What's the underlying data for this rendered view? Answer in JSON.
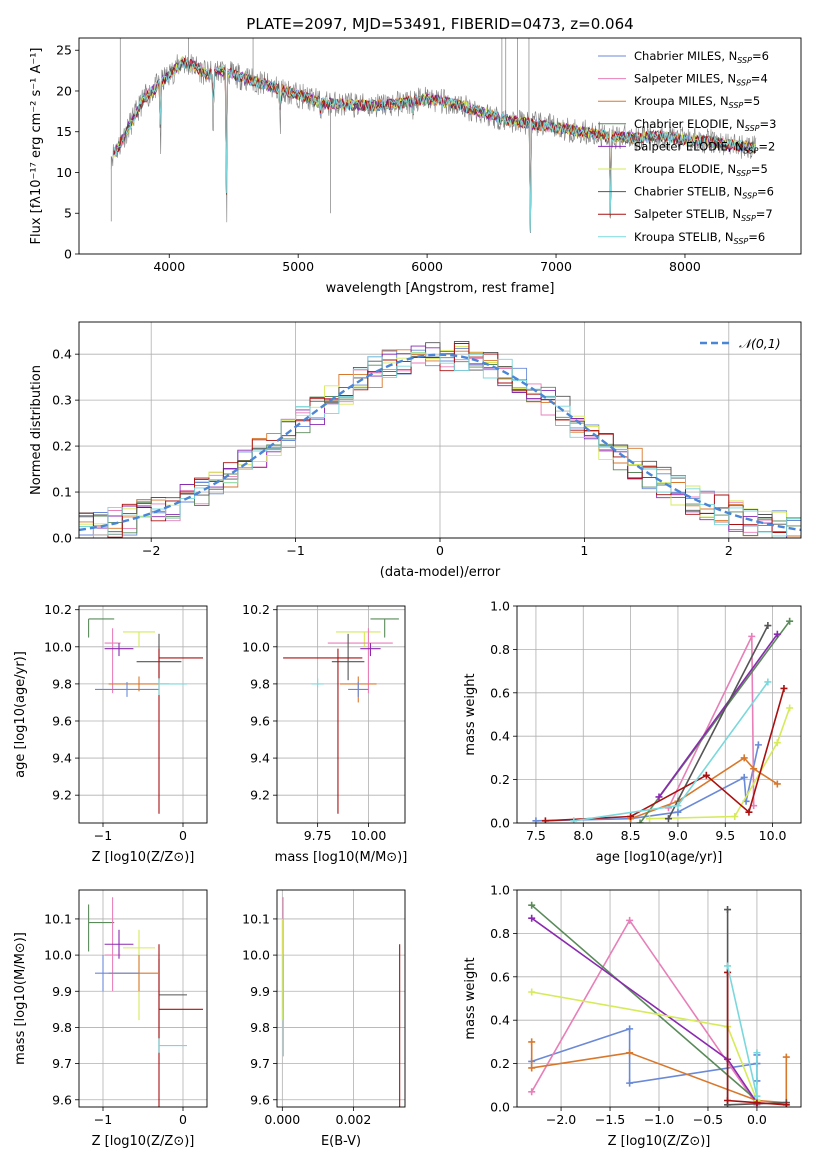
{
  "page_title": "PLATE=2097, MJD=53491, FIBERID=0473, z=0.064",
  "colors": {
    "c1": "#6a8ad8",
    "c2": "#e87fb8",
    "c3": "#d8782c",
    "c4": "#5a8a5a",
    "c5": "#8a2ab0",
    "c6": "#d6ea5a",
    "c7": "#555555",
    "c8": "#aa1010",
    "c9": "#7ad8dc",
    "obs": "#808080",
    "fit": "#4a86d8"
  },
  "chart_data": [
    {
      "id": "spectrum",
      "type": "line",
      "title": "PLATE=2097, MJD=53491, FIBERID=0473, z=0.064",
      "xlabel": "wavelength [Angstrom, rest frame]",
      "ylabel": "Flux [fλ10⁻¹⁷ erg cm⁻² s⁻¹ A⁻¹]",
      "xlim": [
        3300,
        8900
      ],
      "ylim": [
        0,
        26.5
      ],
      "xticks": [
        "4000",
        "5000",
        "6000",
        "7000",
        "8000"
      ],
      "yticks": [
        "0",
        "5",
        "10",
        "15",
        "20",
        "25"
      ],
      "grid": false,
      "legend_position": "top-right",
      "legend": [
        {
          "name": "Chabrier MILES, N_SSP=6",
          "text": "Chabrier MILES, N",
          "n": "6",
          "color_key": "c1"
        },
        {
          "name": "Salpeter MILES, N_SSP=4",
          "text": "Salpeter MILES, N",
          "n": "4",
          "color_key": "c2"
        },
        {
          "name": "Kroupa MILES, N_SSP=5",
          "text": "Kroupa MILES, N",
          "n": "5",
          "color_key": "c3"
        },
        {
          "name": "Chabrier ELODIE, N_SSP=3",
          "text": "Chabrier ELODIE, N",
          "n": "3",
          "color_key": "c4"
        },
        {
          "name": "Salpeter ELODIE, N_SSP=2",
          "text": "Salpeter ELODIE, N",
          "n": "2",
          "color_key": "c5"
        },
        {
          "name": "Kroupa ELODIE, N_SSP=5",
          "text": "Kroupa ELODIE, N",
          "n": "5",
          "color_key": "c6"
        },
        {
          "name": "Chabrier STELIB, N_SSP=6",
          "text": "Chabrier STELIB, N",
          "n": "6",
          "color_key": "c7"
        },
        {
          "name": "Salpeter STELIB, N_SSP=7",
          "text": "Salpeter STELIB, N",
          "n": "7",
          "color_key": "c8"
        },
        {
          "name": "Kroupa STELIB, N_SSP=6",
          "text": "Kroupa STELIB, N",
          "n": "6",
          "color_key": "c9"
        }
      ],
      "legend_sub": "SSP",
      "continuum": [
        [
          3550,
          12
        ],
        [
          3600,
          13
        ],
        [
          3700,
          16
        ],
        [
          3800,
          19
        ],
        [
          3900,
          20.5
        ],
        [
          4000,
          22
        ],
        [
          4100,
          23.5
        ],
        [
          4200,
          23
        ],
        [
          4300,
          22
        ],
        [
          4400,
          22.5
        ],
        [
          4500,
          22
        ],
        [
          4600,
          21.5
        ],
        [
          4800,
          20.5
        ],
        [
          5000,
          19.5
        ],
        [
          5200,
          18.5
        ],
        [
          5400,
          18.3
        ],
        [
          5600,
          18.2
        ],
        [
          5800,
          18.5
        ],
        [
          6000,
          19
        ],
        [
          6200,
          18.5
        ],
        [
          6400,
          17.5
        ],
        [
          6600,
          16.5
        ],
        [
          6800,
          16
        ],
        [
          7000,
          15.5
        ],
        [
          7200,
          15
        ],
        [
          7400,
          14.5
        ],
        [
          7600,
          14.2
        ],
        [
          7800,
          14.5
        ],
        [
          8000,
          14
        ],
        [
          8200,
          13.8
        ],
        [
          8400,
          13.3
        ],
        [
          8550,
          13
        ]
      ],
      "absorption": [
        [
          3933,
          10.5
        ],
        [
          4340,
          11
        ],
        [
          4445,
          0
        ],
        [
          4861,
          13.5
        ],
        [
          5175,
          16
        ],
        [
          5890,
          16.5
        ],
        [
          6563,
          15.5
        ],
        [
          6800,
          0
        ],
        [
          7420,
          0
        ]
      ],
      "obs_spikes": [
        [
          3550,
          4
        ],
        [
          3620,
          27
        ],
        [
          4150,
          27
        ],
        [
          4650,
          26.5
        ],
        [
          5250,
          5
        ],
        [
          6580,
          27
        ],
        [
          6610,
          27
        ],
        [
          6700,
          27
        ],
        [
          6790,
          27
        ]
      ]
    },
    {
      "id": "residuals",
      "type": "line",
      "xlabel": "(data-model)/error",
      "ylabel": "Normed distribution",
      "xlim": [
        -2.5,
        2.5
      ],
      "ylim": [
        0,
        0.47
      ],
      "xticks": [
        "−2",
        "−1",
        "0",
        "1",
        "2"
      ],
      "yticks": [
        "0.0",
        "0.1",
        "0.2",
        "0.3",
        "0.4"
      ],
      "grid": true,
      "legend_position": "top-right",
      "legend": [
        {
          "name": "𝒩(0,1)",
          "style": "dashed"
        }
      ],
      "bin_width": 0.1,
      "gaussian": {
        "mu": 0,
        "sigma": 1
      }
    },
    {
      "id": "age_vs_Z",
      "type": "scatter",
      "xlabel": "Z [log10(Z/Z⊙)]",
      "ylabel": "age [log10(age/yr)]",
      "xlim": [
        -1.3,
        0.3
      ],
      "ylim": [
        9.05,
        10.22
      ],
      "xticks": [
        "−1",
        "0"
      ],
      "yticks": [
        "9.2",
        "9.4",
        "9.6",
        "9.8",
        "10.0",
        "10.2"
      ],
      "grid": true,
      "points": [
        {
          "color_key": "c4",
          "x": -1.18,
          "xerr": [
            0,
            0.32
          ],
          "y": 10.15,
          "yerr": [
            0.1,
            0
          ]
        },
        {
          "color_key": "c6",
          "x": -0.55,
          "xerr": [
            0.2,
            0.2
          ],
          "y": 10.08,
          "yerr": [
            0.08,
            0
          ]
        },
        {
          "color_key": "c2",
          "x": -0.88,
          "xerr": [
            0.1,
            0.1
          ],
          "y": 10.02,
          "yerr": [
            0.27,
            0.08
          ]
        },
        {
          "color_key": "c5",
          "x": -0.8,
          "xerr": [
            0.18,
            0.18
          ],
          "y": 9.99,
          "yerr": [
            0.04,
            0.03
          ]
        },
        {
          "color_key": "c7",
          "x": -0.3,
          "xerr": [
            0.28,
            0.28
          ],
          "y": 9.92,
          "yerr": [
            0.1,
            0.15
          ]
        },
        {
          "color_key": "c8",
          "x": -0.3,
          "xerr": [
            0,
            0.55
          ],
          "y": 9.94,
          "yerr": [
            0.84,
            0.05
          ]
        },
        {
          "color_key": "c3",
          "x": -0.55,
          "xerr": [
            0.38,
            0.38
          ],
          "y": 9.8,
          "yerr": [
            0.04,
            0.04
          ]
        },
        {
          "color_key": "c1",
          "x": -0.7,
          "xerr": [
            0.4,
            0.4
          ],
          "y": 9.77,
          "yerr": [
            0.04,
            0.04
          ]
        },
        {
          "color_key": "c9",
          "x": -0.3,
          "xerr": [
            0,
            0.35
          ],
          "y": 9.8,
          "yerr": [
            0.06,
            0.03
          ]
        }
      ]
    },
    {
      "id": "age_vs_mass",
      "type": "scatter",
      "xlabel": "mass [log10(M/M⊙)]",
      "ylabel": "",
      "xlim": [
        9.55,
        10.18
      ],
      "ylim": [
        9.05,
        10.22
      ],
      "xticks": [
        "9.75",
        "10.00"
      ],
      "yticks": [
        "9.2",
        "9.4",
        "9.6",
        "9.8",
        "10.0",
        "10.2"
      ],
      "grid": true,
      "points": [
        {
          "color_key": "c4",
          "x": 10.08,
          "xerr": [
            0.07,
            0.07
          ],
          "y": 10.15,
          "yerr": [
            0.1,
            0
          ]
        },
        {
          "color_key": "c6",
          "x": 9.98,
          "xerr": [
            0.14,
            0.08
          ],
          "y": 10.08,
          "yerr": [
            0.08,
            0
          ]
        },
        {
          "color_key": "c2",
          "x": 10.0,
          "xerr": [
            0.2,
            0.12
          ],
          "y": 10.02,
          "yerr": [
            0.27,
            0.08
          ]
        },
        {
          "color_key": "c5",
          "x": 10.01,
          "xerr": [
            0.05,
            0.05
          ],
          "y": 9.99,
          "yerr": [
            0.04,
            0.03
          ]
        },
        {
          "color_key": "c7",
          "x": 9.9,
          "xerr": [
            0.08,
            0.08
          ],
          "y": 9.92,
          "yerr": [
            0.1,
            0.15
          ]
        },
        {
          "color_key": "c8",
          "x": 9.85,
          "xerr": [
            0.27,
            0.12
          ],
          "y": 9.94,
          "yerr": [
            0.84,
            0.05
          ]
        },
        {
          "color_key": "c3",
          "x": 9.95,
          "xerr": [
            0.09,
            0.09
          ],
          "y": 9.8,
          "yerr": [
            0.1,
            0.04
          ]
        },
        {
          "color_key": "c1",
          "x": 9.95,
          "xerr": [
            0.05,
            0.05
          ],
          "y": 9.77,
          "yerr": [
            0.04,
            0.04
          ]
        },
        {
          "color_key": "c9",
          "x": 9.75,
          "xerr": [
            0.03,
            0.03
          ],
          "y": 9.8,
          "yerr": [
            0.02,
            0.03
          ]
        }
      ]
    },
    {
      "id": "weight_vs_age",
      "type": "line",
      "xlabel": "age [log10(age/yr)]",
      "ylabel": "mass weight",
      "xlim": [
        7.3,
        10.3
      ],
      "ylim": [
        0,
        1
      ],
      "xticks": [
        "7.5",
        "8.0",
        "8.5",
        "9.0",
        "9.5",
        "10.0"
      ],
      "yticks": [
        "0.0",
        "0.2",
        "0.4",
        "0.6",
        "0.8",
        "1.0"
      ],
      "grid": true,
      "series": [
        {
          "color_key": "c1",
          "x": [
            7.5,
            8.5,
            9.0,
            9.7,
            9.72,
            9.85
          ],
          "y": [
            0.01,
            0.02,
            0.05,
            0.21,
            0.1,
            0.36
          ]
        },
        {
          "color_key": "c2",
          "x": [
            8.9,
            9.78,
            9.8
          ],
          "y": [
            0.07,
            0.86,
            0.08
          ]
        },
        {
          "color_key": "c3",
          "x": [
            8.5,
            9.0,
            9.7,
            9.8,
            10.05
          ],
          "y": [
            0.02,
            0.1,
            0.3,
            0.25,
            0.18
          ]
        },
        {
          "color_key": "c4",
          "x": [
            8.6,
            10.18
          ],
          "y": [
            0.0,
            0.93
          ]
        },
        {
          "color_key": "c5",
          "x": [
            8.8,
            10.05
          ],
          "y": [
            0.12,
            0.87
          ]
        },
        {
          "color_key": "c6",
          "x": [
            8.7,
            9.6,
            10.05,
            10.18
          ],
          "y": [
            0.02,
            0.03,
            0.37,
            0.53
          ]
        },
        {
          "color_key": "c7",
          "x": [
            8.9,
            9.95
          ],
          "y": [
            0.02,
            0.91
          ]
        },
        {
          "color_key": "c8",
          "x": [
            7.6,
            8.5,
            9.3,
            9.75,
            10.12
          ],
          "y": [
            0.01,
            0.03,
            0.22,
            0.05,
            0.62
          ]
        },
        {
          "color_key": "c9",
          "x": [
            7.9,
            9.0,
            9.95
          ],
          "y": [
            0.01,
            0.08,
            0.65
          ]
        }
      ]
    },
    {
      "id": "mass_vs_Z",
      "type": "scatter",
      "xlabel": "Z [log10(Z/Z⊙)]",
      "ylabel": "mass [log10(M/M⊙)]",
      "xlim": [
        -1.3,
        0.3
      ],
      "ylim": [
        9.58,
        10.18
      ],
      "xticks": [
        "−1",
        "0"
      ],
      "yticks": [
        "9.6",
        "9.7",
        "9.8",
        "9.9",
        "10.0",
        "10.1"
      ],
      "grid": true,
      "points": [
        {
          "color_key": "c4",
          "x": -1.18,
          "xerr": [
            0,
            0.32
          ],
          "y": 10.09,
          "yerr": [
            0.08,
            0.05
          ]
        },
        {
          "color_key": "c6",
          "x": -0.55,
          "xerr": [
            0.2,
            0.2
          ],
          "y": 10.02,
          "yerr": [
            0.2,
            0.05
          ]
        },
        {
          "color_key": "c2",
          "x": -0.88,
          "xerr": [
            0.1,
            0.1
          ],
          "y": 10.0,
          "yerr": [
            0.1,
            0.16
          ]
        },
        {
          "color_key": "c5",
          "x": -0.8,
          "xerr": [
            0.18,
            0.18
          ],
          "y": 10.03,
          "yerr": [
            0.04,
            0.04
          ]
        },
        {
          "color_key": "c7",
          "x": -0.3,
          "xerr": [
            0,
            0.35
          ],
          "y": 9.89,
          "yerr": [
            0.16,
            0.1
          ]
        },
        {
          "color_key": "c8",
          "x": -0.3,
          "xerr": [
            0,
            0.55
          ],
          "y": 9.85,
          "yerr": [
            0.27,
            0.18
          ]
        },
        {
          "color_key": "c3",
          "x": -0.55,
          "xerr": [
            0.38,
            0.25
          ],
          "y": 9.95,
          "yerr": [
            0.05,
            0.05
          ]
        },
        {
          "color_key": "c1",
          "x": -1.0,
          "xerr": [
            0.1,
            0.45
          ],
          "y": 9.95,
          "yerr": [
            0.05,
            0.05
          ]
        },
        {
          "color_key": "c9",
          "x": -0.3,
          "xerr": [
            0,
            0.35
          ],
          "y": 9.75,
          "yerr": [
            0.02,
            0.02
          ]
        }
      ]
    },
    {
      "id": "mass_vs_ebv",
      "type": "scatter",
      "xlabel": "E(B-V)",
      "ylabel": "",
      "xlim": [
        -0.00015,
        0.00345
      ],
      "ylim": [
        9.58,
        10.18
      ],
      "xticks": [
        "0.000",
        "0.002"
      ],
      "yticks": [
        "9.6",
        "9.7",
        "9.8",
        "9.9",
        "10.0",
        "10.1"
      ],
      "grid": true,
      "points": [
        {
          "color_key": "c2",
          "x": 2e-05,
          "xerr": [
            0,
            0
          ],
          "y": 10.0,
          "yerr": [
            0.15,
            0.16
          ]
        },
        {
          "color_key": "c6",
          "x": 0.0,
          "xerr": [
            0,
            0
          ],
          "y": 10.02,
          "yerr": [
            0.2,
            0.08
          ]
        },
        {
          "color_key": "c9",
          "x": 3e-05,
          "xerr": [
            0,
            0
          ],
          "y": 9.75,
          "yerr": [
            0.03,
            0.25
          ]
        },
        {
          "color_key": "c8",
          "x": 0.0033,
          "xerr": [
            0,
            0
          ],
          "y": 9.85,
          "yerr": [
            0.27,
            0.18
          ]
        }
      ]
    },
    {
      "id": "weight_vs_Z",
      "type": "line",
      "xlabel": "Z [log10(Z/Z⊙)]",
      "ylabel": "mass weight",
      "xlim": [
        -2.45,
        0.45
      ],
      "ylim": [
        0,
        1
      ],
      "xticks": [
        "−2.0",
        "−1.5",
        "−1.0",
        "−0.5",
        "0.0"
      ],
      "yticks": [
        "0.0",
        "0.2",
        "0.4",
        "0.6",
        "0.8",
        "1.0"
      ],
      "grid": true,
      "series": [
        {
          "color_key": "c1",
          "x": [
            -2.3,
            -1.3,
            -1.3,
            0.0,
            0.0,
            0.0
          ],
          "y": [
            0.21,
            0.36,
            0.11,
            0.2,
            0.12,
            0.24
          ]
        },
        {
          "color_key": "c2",
          "x": [
            -2.3,
            -1.3,
            0.0
          ],
          "y": [
            0.07,
            0.86,
            0.01
          ]
        },
        {
          "color_key": "c3",
          "x": [
            -2.3,
            -2.3,
            -1.3,
            0.0,
            0.3,
            0.3
          ],
          "y": [
            0.3,
            0.18,
            0.25,
            0.03,
            0.02,
            0.23
          ]
        },
        {
          "color_key": "c4",
          "x": [
            -2.3,
            0.0
          ],
          "y": [
            0.93,
            0.03
          ]
        },
        {
          "color_key": "c5",
          "x": [
            -2.3,
            -0.3,
            0.0
          ],
          "y": [
            0.87,
            0.22,
            0.02
          ]
        },
        {
          "color_key": "c6",
          "x": [
            -2.3,
            -0.3,
            0.0
          ],
          "y": [
            0.53,
            0.37,
            0.03
          ]
        },
        {
          "color_key": "c7",
          "x": [
            -0.3,
            -0.3,
            0.3
          ],
          "y": [
            0.91,
            0.01,
            0.02
          ]
        },
        {
          "color_key": "c8",
          "x": [
            -0.3,
            -0.3,
            0.0,
            0.3
          ],
          "y": [
            0.62,
            0.03,
            0.02,
            0.01
          ]
        },
        {
          "color_key": "c9",
          "x": [
            -0.3,
            0.0,
            0.0
          ],
          "y": [
            0.65,
            0.05,
            0.25
          ]
        }
      ]
    }
  ]
}
